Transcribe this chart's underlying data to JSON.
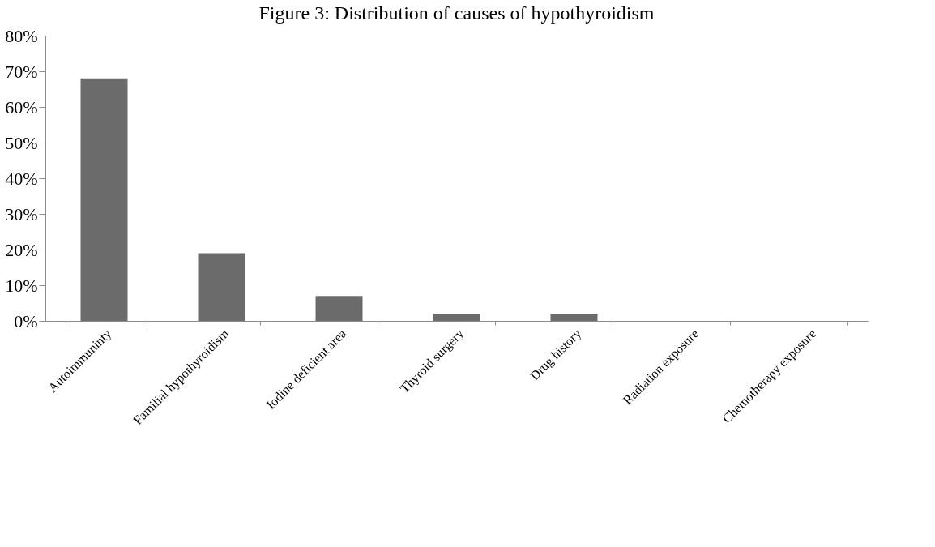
{
  "chart_data": {
    "type": "bar",
    "title": "Figure 3: Distribution of causes of hypothyroidism",
    "categories": [
      "Autoimmuninty",
      "Familial hypothyroidism",
      "Iodine deficient area",
      "Thyroid surgery",
      "Drug history",
      "Radiation exposure",
      "Chemotherapy exposure"
    ],
    "values": [
      68,
      19,
      7,
      2,
      2,
      0,
      0
    ],
    "color": "#6b6b6b",
    "ylim": [
      0,
      80
    ],
    "yticks": [
      {
        "value": 0,
        "label": "0%"
      },
      {
        "value": 10,
        "label": "10%"
      },
      {
        "value": 20,
        "label": "20%"
      },
      {
        "value": 30,
        "label": "30%"
      },
      {
        "value": 40,
        "label": "40%"
      },
      {
        "value": 50,
        "label": "50%"
      },
      {
        "value": 60,
        "label": "60%"
      },
      {
        "value": 70,
        "label": "70%"
      },
      {
        "value": 80,
        "label": "80%"
      }
    ],
    "grid": false
  }
}
